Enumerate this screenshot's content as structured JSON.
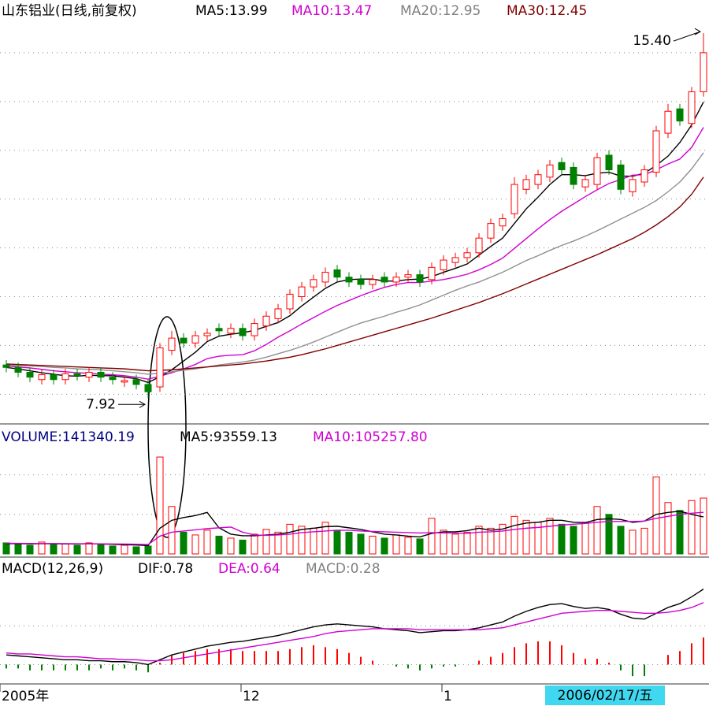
{
  "chart_data": [
    {
      "type": "candlestick",
      "title": "山东铝业(日线,前复权)",
      "open": [
        8.6,
        8.55,
        8.45,
        8.3,
        8.4,
        8.3,
        8.42,
        8.35,
        8.45,
        8.35,
        8.25,
        8.3,
        8.2,
        8.15,
        8.9,
        9.15,
        9.05,
        9.2,
        9.35,
        9.25,
        9.35,
        9.2,
        9.4,
        9.55,
        9.75,
        10.0,
        10.2,
        10.3,
        10.55,
        10.4,
        10.35,
        10.25,
        10.4,
        10.3,
        10.4,
        10.45,
        10.35,
        10.55,
        10.7,
        10.8,
        10.9,
        11.2,
        11.45,
        11.7,
        12.2,
        12.3,
        12.45,
        12.75,
        12.65,
        12.25,
        12.3,
        12.9,
        12.7,
        12.15,
        12.35,
        12.55,
        13.35,
        13.85,
        13.55,
        14.2
      ],
      "high": [
        8.7,
        8.65,
        8.55,
        8.5,
        8.5,
        8.52,
        8.52,
        8.55,
        8.55,
        8.45,
        8.38,
        8.4,
        8.3,
        9.05,
        9.3,
        9.25,
        9.3,
        9.35,
        9.45,
        9.45,
        9.45,
        9.55,
        9.7,
        9.85,
        10.15,
        10.3,
        10.45,
        10.6,
        10.65,
        10.5,
        10.45,
        10.45,
        10.5,
        10.5,
        10.55,
        10.55,
        10.7,
        10.85,
        10.9,
        11.0,
        11.3,
        11.6,
        11.7,
        12.45,
        12.5,
        12.6,
        12.8,
        12.85,
        12.75,
        12.5,
        12.95,
        13.0,
        12.8,
        12.5,
        12.7,
        13.5,
        13.95,
        13.95,
        14.3,
        15.4
      ],
      "low": [
        8.45,
        8.35,
        8.25,
        8.2,
        8.2,
        8.2,
        8.28,
        8.25,
        8.25,
        8.2,
        8.15,
        8.1,
        7.92,
        8.05,
        8.8,
        8.95,
        8.95,
        9.1,
        9.2,
        9.15,
        9.1,
        9.1,
        9.3,
        9.45,
        9.65,
        9.9,
        10.1,
        10.2,
        10.3,
        10.2,
        10.15,
        10.15,
        10.2,
        10.2,
        10.3,
        10.2,
        10.25,
        10.45,
        10.6,
        10.7,
        10.8,
        11.1,
        11.35,
        11.6,
        12.1,
        12.2,
        12.35,
        12.5,
        12.2,
        12.15,
        12.2,
        12.5,
        12.1,
        12.05,
        12.25,
        12.45,
        13.25,
        13.5,
        13.45,
        14.1
      ],
      "close": [
        8.55,
        8.45,
        8.35,
        8.4,
        8.3,
        8.42,
        8.38,
        8.45,
        8.35,
        8.3,
        8.28,
        8.2,
        8.05,
        8.95,
        9.15,
        9.05,
        9.2,
        9.25,
        9.3,
        9.35,
        9.2,
        9.45,
        9.6,
        9.75,
        10.05,
        10.2,
        10.35,
        10.5,
        10.4,
        10.3,
        10.25,
        10.35,
        10.3,
        10.4,
        10.45,
        10.3,
        10.6,
        10.75,
        10.8,
        10.9,
        11.2,
        11.5,
        11.6,
        12.3,
        12.4,
        12.5,
        12.7,
        12.6,
        12.3,
        12.4,
        12.85,
        12.6,
        12.2,
        12.4,
        12.6,
        13.4,
        13.8,
        13.6,
        14.2,
        15.0
      ],
      "up_color": "#ff0000",
      "down_color": "#008000",
      "series": [
        {
          "name": "MA5:13.99",
          "color": "#000000",
          "values": [
            8.55,
            8.52,
            8.48,
            8.44,
            8.41,
            8.38,
            8.37,
            8.39,
            8.38,
            8.38,
            8.35,
            8.32,
            8.24,
            8.36,
            8.5,
            8.68,
            8.86,
            9.08,
            9.19,
            9.23,
            9.26,
            9.31,
            9.39,
            9.47,
            9.61,
            9.81,
            9.99,
            10.17,
            10.3,
            10.35,
            10.36,
            10.36,
            10.32,
            10.32,
            10.35,
            10.36,
            10.41,
            10.5,
            10.58,
            10.67,
            10.85,
            11.03,
            11.2,
            11.5,
            11.8,
            12.04,
            12.3,
            12.5,
            12.5,
            12.48,
            12.53,
            12.55,
            12.47,
            12.47,
            12.53,
            12.69,
            12.88,
            13.16,
            13.52,
            13.99
          ]
        },
        {
          "name": "MA10:13.47",
          "color": "#d000d0",
          "values": [
            8.58,
            8.56,
            8.54,
            8.51,
            8.48,
            8.46,
            8.44,
            8.43,
            8.41,
            8.4,
            8.38,
            8.35,
            8.31,
            8.37,
            8.44,
            8.52,
            8.61,
            8.73,
            8.78,
            8.8,
            8.81,
            8.89,
            9.02,
            9.17,
            9.3,
            9.44,
            9.57,
            9.7,
            9.82,
            9.92,
            10.02,
            10.11,
            10.19,
            10.25,
            10.29,
            10.29,
            10.32,
            10.35,
            10.4,
            10.46,
            10.55,
            10.66,
            10.79,
            10.99,
            11.19,
            11.39,
            11.58,
            11.75,
            11.9,
            12.05,
            12.19,
            12.32,
            12.4,
            12.49,
            12.5,
            12.6,
            12.72,
            12.82,
            13.06,
            13.47
          ]
        },
        {
          "name": "MA20:12.95",
          "color": "#909090",
          "values": [
            8.6,
            8.59,
            8.58,
            8.57,
            8.55,
            8.54,
            8.52,
            8.51,
            8.5,
            8.48,
            8.46,
            8.44,
            8.41,
            8.43,
            8.46,
            8.49,
            8.52,
            8.56,
            8.6,
            8.63,
            8.66,
            8.7,
            8.76,
            8.83,
            8.9,
            8.98,
            9.07,
            9.17,
            9.27,
            9.37,
            9.46,
            9.53,
            9.6,
            9.68,
            9.75,
            9.83,
            9.93,
            10.03,
            10.13,
            10.22,
            10.3,
            10.4,
            10.5,
            10.62,
            10.74,
            10.84,
            10.95,
            11.05,
            11.14,
            11.24,
            11.35,
            11.47,
            11.59,
            11.71,
            11.83,
            11.97,
            12.15,
            12.35,
            12.62,
            12.95
          ]
        },
        {
          "name": "MA30:12.45",
          "color": "#800000",
          "values": [
            8.62,
            8.61,
            8.6,
            8.59,
            8.58,
            8.57,
            8.56,
            8.55,
            8.54,
            8.53,
            8.52,
            8.5,
            8.48,
            8.49,
            8.5,
            8.52,
            8.54,
            8.56,
            8.58,
            8.6,
            8.62,
            8.65,
            8.68,
            8.72,
            8.76,
            8.81,
            8.87,
            8.93,
            9.0,
            9.07,
            9.14,
            9.21,
            9.28,
            9.35,
            9.42,
            9.49,
            9.56,
            9.64,
            9.72,
            9.8,
            9.88,
            9.97,
            10.06,
            10.16,
            10.26,
            10.36,
            10.46,
            10.56,
            10.66,
            10.76,
            10.86,
            10.97,
            11.08,
            11.19,
            11.32,
            11.47,
            11.64,
            11.84,
            12.1,
            12.45
          ]
        }
      ],
      "ylim": [
        7.44,
        16.0
      ],
      "yticks": [
        8,
        9,
        10,
        11,
        12,
        13,
        14,
        15
      ],
      "grid": true,
      "annotations": [
        {
          "text": "15.40",
          "value": 15.4,
          "index": 59
        },
        {
          "text": "7.92",
          "value": 7.92,
          "index": 12
        }
      ]
    },
    {
      "type": "volume",
      "series": [
        {
          "name": "VOLUME:141340.19",
          "color": "#000080",
          "values": [
            28000,
            25000,
            22000,
            30000,
            24000,
            26000,
            22000,
            28000,
            25000,
            20000,
            22000,
            18000,
            20000,
            245000,
            120000,
            55000,
            48000,
            60000,
            45000,
            40000,
            35000,
            50000,
            62000,
            55000,
            75000,
            70000,
            65000,
            80000,
            60000,
            55000,
            50000,
            45000,
            40000,
            48000,
            42000,
            38000,
            90000,
            60000,
            50000,
            55000,
            70000,
            65000,
            75000,
            95000,
            85000,
            80000,
            90000,
            75000,
            70000,
            80000,
            120000,
            100000,
            70000,
            60000,
            65000,
            195000,
            130000,
            110000,
            135000,
            141340.19
          ]
        },
        {
          "name": "MA5:93559.13",
          "color": "#000000",
          "values": [
            26000,
            26000,
            25500,
            25800,
            25800,
            25400,
            25200,
            26000,
            25000,
            24200,
            23400,
            22600,
            21000,
            65000,
            85000,
            92000,
            97000,
            105000,
            66000,
            50000,
            46000,
            46000,
            48000,
            50000,
            55000,
            62000,
            65000,
            69000,
            70000,
            66000,
            62000,
            56000,
            50000,
            48000,
            45000,
            43000,
            52000,
            56000,
            56000,
            59000,
            65000,
            60000,
            63000,
            72000,
            78000,
            80000,
            85000,
            85000,
            80000,
            79000,
            87000,
            89000,
            87000,
            80000,
            83000,
            100000,
            105000,
            108000,
            100000,
            93559.13
          ]
        },
        {
          "name": "MA10:105257.80",
          "color": "#d000d0",
          "values": [
            27000,
            26800,
            26500,
            26300,
            26200,
            26000,
            25800,
            25800,
            25600,
            25300,
            25000,
            24500,
            23800,
            45000,
            55000,
            58000,
            61000,
            64000,
            66000,
            68000,
            55000,
            48000,
            47000,
            48000,
            50000,
            54000,
            56000,
            58000,
            60000,
            60000,
            58000,
            57000,
            56000,
            55000,
            54000,
            53000,
            54000,
            53000,
            53000,
            52000,
            55000,
            56000,
            58000,
            62000,
            65000,
            67000,
            70000,
            73000,
            75000,
            77000,
            80000,
            82000,
            82000,
            82000,
            83000,
            90000,
            95000,
            100000,
            103000,
            105257.8
          ]
        }
      ],
      "ylim": [
        0,
        275000
      ],
      "yticks": [
        100000,
        200000
      ],
      "grid": true
    },
    {
      "type": "macd",
      "title": "MACD(12,26,9)",
      "series": [
        {
          "name": "DIF:0.78",
          "color": "#000000",
          "values": [
            0.1,
            0.09,
            0.08,
            0.07,
            0.06,
            0.05,
            0.05,
            0.04,
            0.04,
            0.03,
            0.03,
            0.02,
            0.0,
            0.05,
            0.1,
            0.13,
            0.16,
            0.19,
            0.21,
            0.23,
            0.24,
            0.26,
            0.28,
            0.3,
            0.33,
            0.36,
            0.39,
            0.41,
            0.42,
            0.41,
            0.4,
            0.39,
            0.37,
            0.36,
            0.35,
            0.33,
            0.34,
            0.35,
            0.35,
            0.36,
            0.38,
            0.41,
            0.44,
            0.5,
            0.55,
            0.59,
            0.62,
            0.63,
            0.6,
            0.58,
            0.59,
            0.57,
            0.52,
            0.48,
            0.47,
            0.53,
            0.59,
            0.63,
            0.7,
            0.78
          ]
        },
        {
          "name": "DEA:0.64",
          "color": "#d000d0",
          "values": [
            0.12,
            0.11,
            0.11,
            0.1,
            0.09,
            0.08,
            0.08,
            0.07,
            0.06,
            0.06,
            0.05,
            0.05,
            0.04,
            0.04,
            0.05,
            0.07,
            0.09,
            0.11,
            0.13,
            0.15,
            0.17,
            0.19,
            0.21,
            0.23,
            0.25,
            0.27,
            0.29,
            0.32,
            0.34,
            0.35,
            0.36,
            0.37,
            0.37,
            0.37,
            0.37,
            0.36,
            0.36,
            0.36,
            0.36,
            0.36,
            0.36,
            0.37,
            0.38,
            0.41,
            0.44,
            0.47,
            0.5,
            0.53,
            0.54,
            0.55,
            0.56,
            0.56,
            0.55,
            0.54,
            0.53,
            0.53,
            0.54,
            0.56,
            0.59,
            0.64
          ]
        },
        {
          "name": "MACD:0.28",
          "color": "#909090",
          "up_color": "#ff0000",
          "down_color": "#008000",
          "values": [
            -0.04,
            -0.04,
            -0.06,
            -0.06,
            -0.06,
            -0.06,
            -0.06,
            -0.06,
            -0.04,
            -0.06,
            -0.04,
            -0.06,
            -0.08,
            0.02,
            0.1,
            0.12,
            0.14,
            0.16,
            0.16,
            0.16,
            0.14,
            0.14,
            0.14,
            0.14,
            0.16,
            0.18,
            0.2,
            0.18,
            0.16,
            0.12,
            0.08,
            0.04,
            0.0,
            -0.02,
            -0.04,
            -0.06,
            -0.04,
            -0.02,
            -0.02,
            0.0,
            0.04,
            0.08,
            0.12,
            0.18,
            0.22,
            0.24,
            0.24,
            0.2,
            0.12,
            0.06,
            0.06,
            0.02,
            -0.06,
            -0.12,
            -0.12,
            0.0,
            0.1,
            0.14,
            0.22,
            0.28
          ]
        }
      ],
      "ylim": [
        -0.2,
        1.07
      ],
      "yticks": [
        0,
        0.4
      ],
      "grid": true,
      "xlabels": [
        {
          "label": "2005年",
          "index": 0
        },
        {
          "label": "12",
          "index": 20
        },
        {
          "label": "1",
          "index": 37
        },
        {
          "label": "2006/02/17/五",
          "index": 59
        }
      ]
    }
  ]
}
